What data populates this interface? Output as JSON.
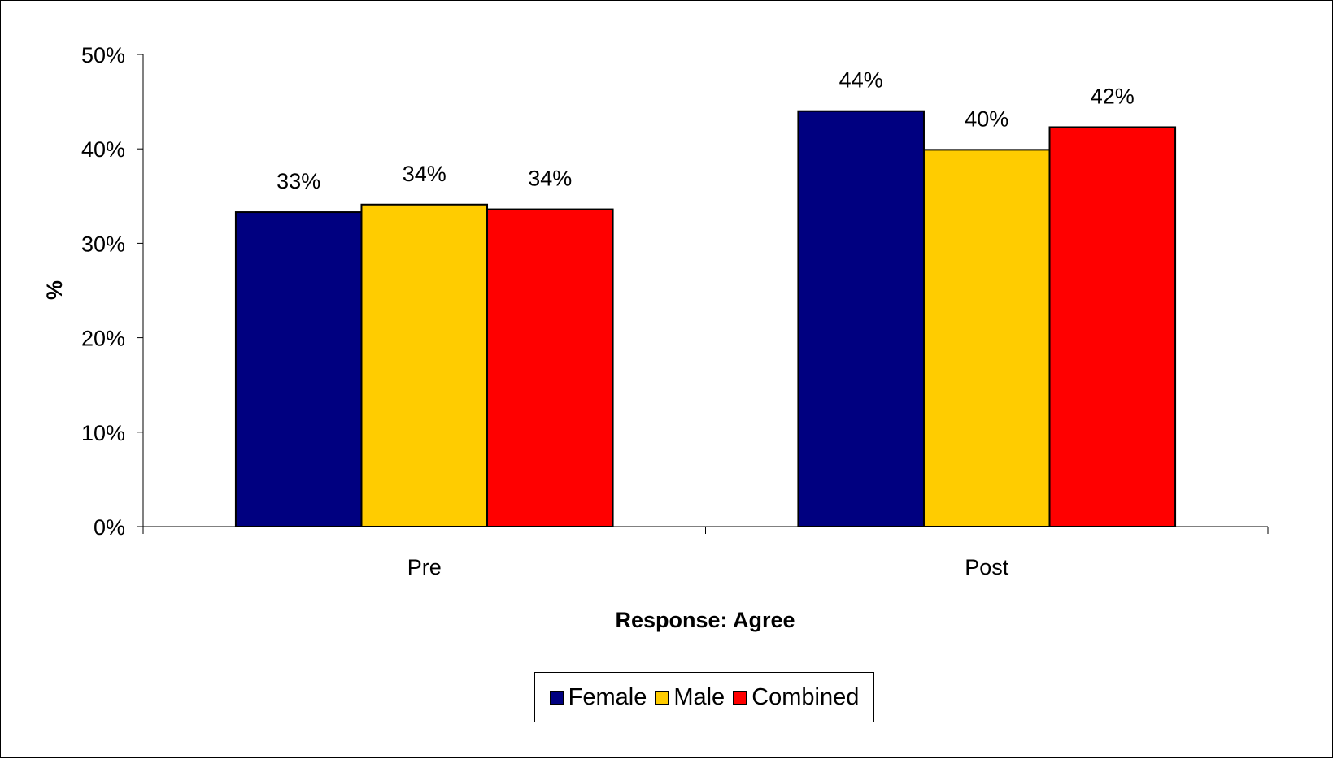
{
  "chart_data": {
    "type": "bar",
    "categories": [
      "Pre",
      "Post"
    ],
    "series": [
      {
        "name": "Female",
        "values": [
          33.3,
          44.0
        ],
        "labels": [
          "33%",
          "44%"
        ],
        "color": "#000080"
      },
      {
        "name": "Male",
        "values": [
          34.1,
          39.9
        ],
        "labels": [
          "34%",
          "40%"
        ],
        "color": "#FFCC00"
      },
      {
        "name": "Combined",
        "values": [
          33.6,
          42.3
        ],
        "labels": [
          "34%",
          "42%"
        ],
        "color": "#FF0000"
      }
    ],
    "xlabel": "Response: Agree",
    "ylabel": "%",
    "ylim": [
      0,
      50
    ],
    "yticks": [
      0,
      10,
      20,
      30,
      40,
      50
    ],
    "ytick_labels": [
      "0%",
      "10%",
      "20%",
      "30%",
      "40%",
      "50%"
    ],
    "grid": false,
    "legend_position": "bottom"
  }
}
